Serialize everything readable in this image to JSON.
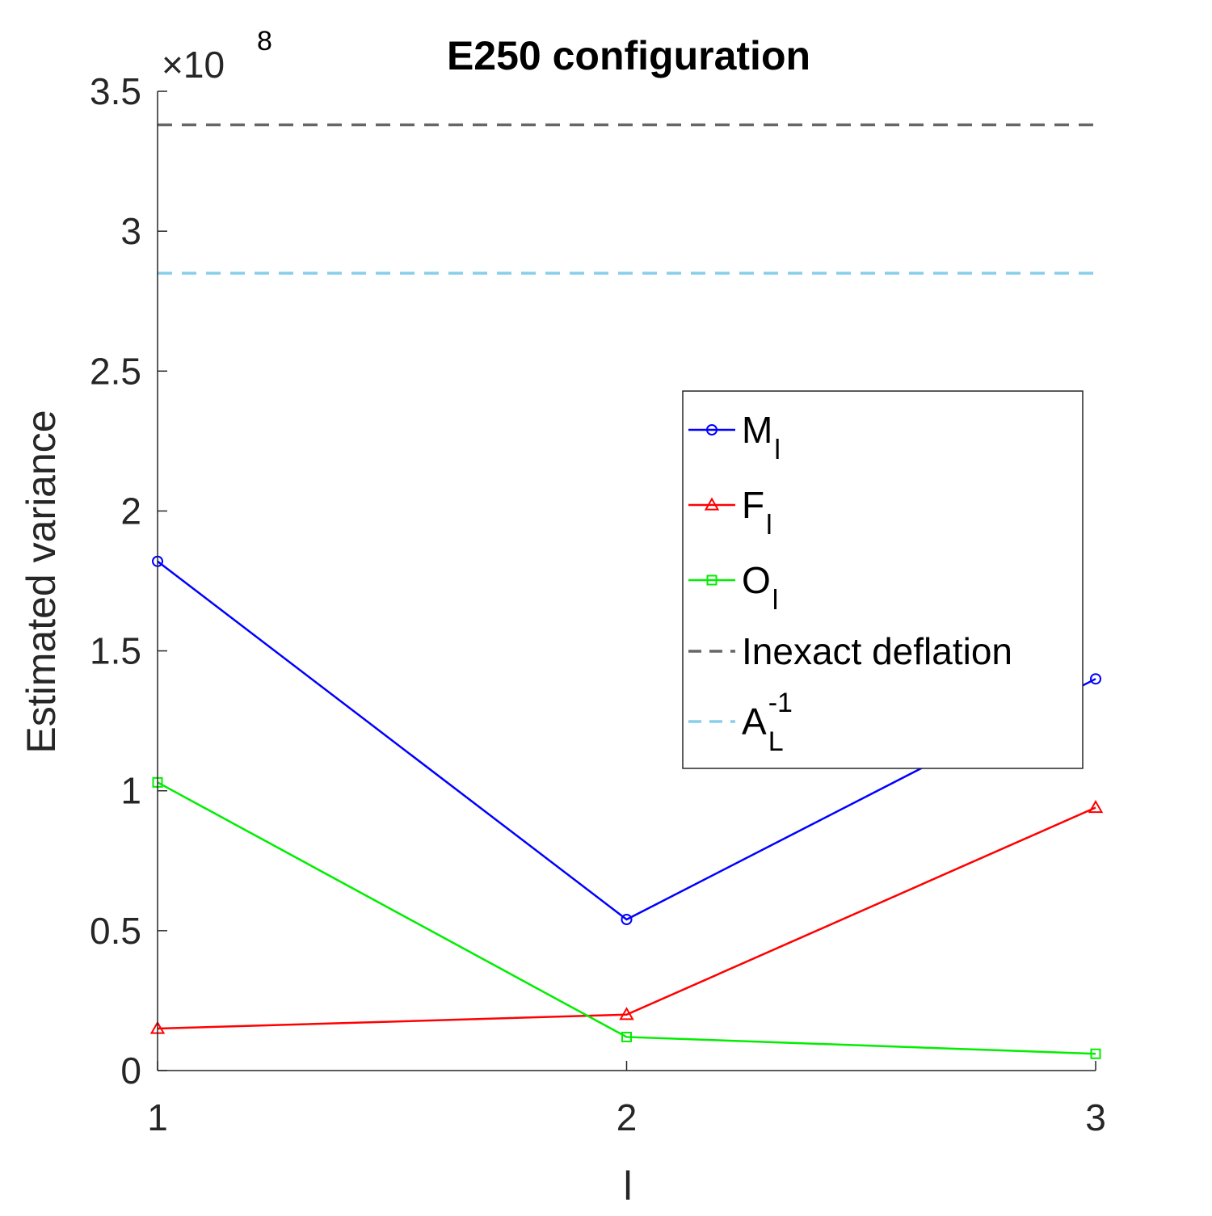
{
  "chart_data": {
    "type": "line",
    "title": "E250 configuration",
    "xlabel": "l",
    "ylabel": "Estimated variance",
    "x": [
      1,
      2,
      3
    ],
    "xticks": [
      "1",
      "2",
      "3"
    ],
    "xlim": [
      1,
      3
    ],
    "ylim": [
      0,
      3.5
    ],
    "yticks": [
      "0",
      "0.5",
      "1",
      "1.5",
      "2",
      "2.5",
      "3",
      "3.5"
    ],
    "y_exponent_label": "×10",
    "y_exponent_power": "8",
    "grid": false,
    "legend_position": "center-right",
    "series": [
      {
        "name": "M",
        "subscript": "l",
        "color": "#0000ff",
        "marker": "circle",
        "values": [
          1.82,
          0.54,
          1.4
        ]
      },
      {
        "name": "F",
        "subscript": "l",
        "color": "#ff0000",
        "marker": "triangle",
        "values": [
          0.15,
          0.2,
          0.94
        ]
      },
      {
        "name": "O",
        "subscript": "l",
        "color": "#00ee00",
        "marker": "square",
        "values": [
          1.03,
          0.12,
          0.06
        ]
      }
    ],
    "reference_lines": [
      {
        "name": "Inexact deflation",
        "color": "#666666",
        "style": "dashed",
        "value": 3.38
      },
      {
        "name": "A",
        "subscript": "L",
        "superscript": "-1",
        "color": "#87ceeb",
        "style": "dashed",
        "value": 2.85
      }
    ]
  }
}
